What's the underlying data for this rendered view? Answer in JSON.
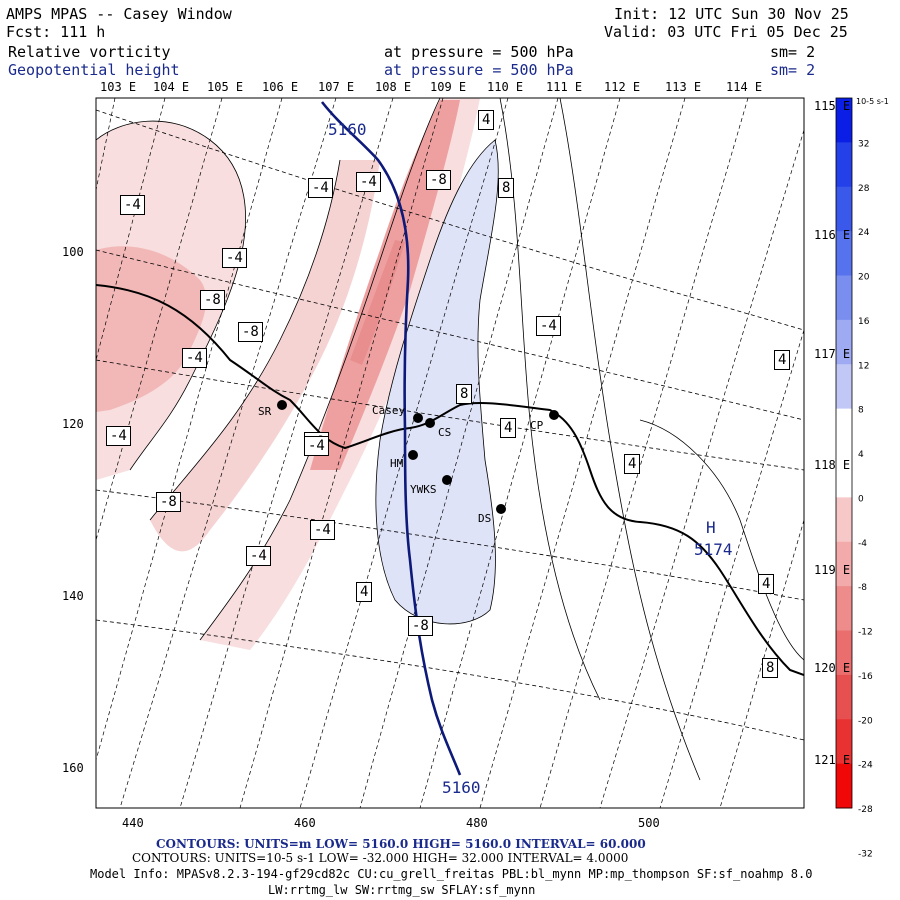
{
  "header": {
    "title": "AMPS MPAS -- Casey Window",
    "forecast": "Fcst: 111 h",
    "init": "Init: 12 UTC Sun 30 Nov 25",
    "valid": "Valid: 03 UTC Fri 05 Dec 25",
    "field1": {
      "name": "Relative vorticity",
      "level": "at pressure =  500 hPa",
      "smooth": "sm= 2"
    },
    "field2": {
      "name": "Geopotential height",
      "level": "at pressure =  500 hPa",
      "smooth": "sm= 2"
    }
  },
  "top_lon_labels": [
    "103 E",
    "104 E",
    "105 E",
    "106 E",
    "107 E",
    "108 E",
    "109 E",
    "110 E",
    "111 E",
    "112 E",
    "113 E",
    "114 E"
  ],
  "right_lon_labels": [
    "115 E",
    "116 E",
    "117 E",
    "118 E",
    "119 E",
    "120 E",
    "121 E"
  ],
  "y_ticks": [
    "100",
    "120",
    "140",
    "160"
  ],
  "x_ticks": [
    "440",
    "460",
    "480",
    "500"
  ],
  "colorbar": {
    "unit": "10-5 s-1",
    "labels": [
      "32",
      "28",
      "24",
      "20",
      "16",
      "12",
      "8",
      "4",
      "0",
      "-4",
      "-8",
      "-12",
      "-16",
      "-20",
      "-24",
      "-28",
      "-32"
    ]
  },
  "stations": [
    {
      "id": "SR"
    },
    {
      "id": "Casey"
    },
    {
      "id": "CS"
    },
    {
      "id": "HM"
    },
    {
      "id": "YWKS"
    },
    {
      "id": "DS"
    },
    {
      "id": "CP"
    }
  ],
  "contour_labels": {
    "height_top": "5160",
    "height_bottom": "5160",
    "high_letter": "H",
    "high_value": "5174",
    "vort": [
      "-4",
      "-4",
      "-4",
      "-4",
      "-8",
      "-8",
      "-4",
      "-4",
      "-8",
      "-8",
      "-4",
      "-8",
      "-4",
      "-4",
      "-8",
      "4",
      "8",
      "8",
      "4",
      "4",
      "4",
      "4",
      "4",
      "8",
      "-4"
    ]
  },
  "footer": {
    "line1": "CONTOURS:  UNITS=m  LOW=  5160.0          HIGH=  5160.0          INTERVAL=   60.000",
    "line2": "CONTOURS:  UNITS=10-5 s-1  LOW= -32.000          HIGH=  32.000          INTERVAL=    4.0000",
    "line3": "Model Info: MPASv8.2.3-194-gf29cd82c CU:cu_grell_freitas PBL:bl_mynn MP:mp_thompson SF:sf_noahmp 8.0",
    "line4": "LW:rrtmg_lw SW:rrtmg_sw SFLAY:sf_mynn"
  },
  "colors": {
    "height_contour": "#0d1a7a",
    "label_blue": "#1a2a8c",
    "neg_fill_light": "#f8dede",
    "neg_fill_mid": "#f2b8b8",
    "neg_fill_dark": "#e88e8e",
    "pos_fill": "#dfe3f7"
  }
}
